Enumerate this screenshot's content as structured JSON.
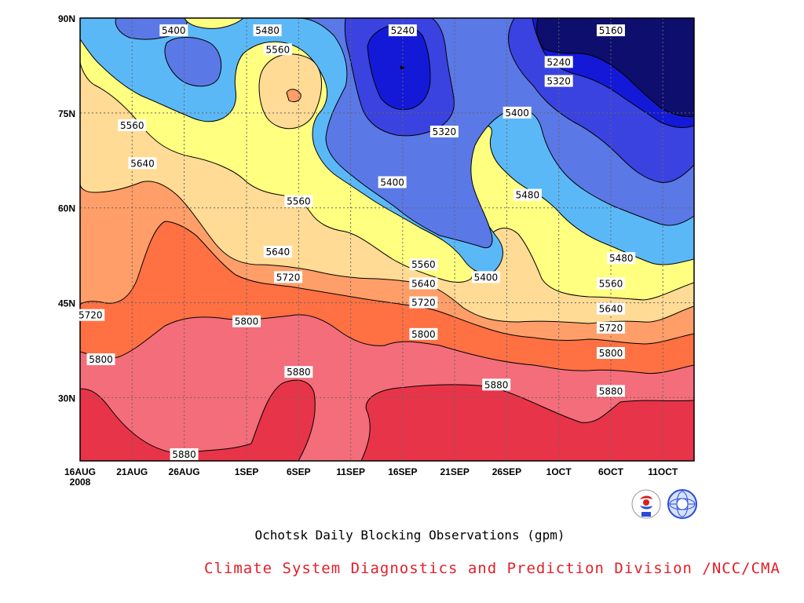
{
  "chart_data": {
    "type": "contour",
    "title": "Ochotsk Daily Blocking Observations (gpm)",
    "credit": "Climate System Diagnostics and Prediction Division /NCC/CMA",
    "x_ticks": [
      "16AUG\n2008",
      "21AUG",
      "26AUG",
      "1SEP",
      "6SEP",
      "11SEP",
      "16SEP",
      "21SEP",
      "26SEP",
      "1OCT",
      "6OCT",
      "11OCT"
    ],
    "y_ticks": [
      "90N",
      "75N",
      "60N",
      "45N",
      "30N"
    ],
    "x_range": [
      "16AUG2008",
      "14OCT2008"
    ],
    "y_range": [
      20,
      90
    ],
    "grid": true,
    "contour_levels": [
      5160,
      5240,
      5320,
      5400,
      5480,
      5560,
      5640,
      5720,
      5800,
      5880
    ],
    "fill_colors": {
      "lt5160": "#0d0e6e",
      "5160": "#1419d8",
      "5240": "#3a42e0",
      "5320": "#5a78e6",
      "5400": "#5bb8f7",
      "5480": "#ffff80",
      "5560": "#ffdb95",
      "5640": "#ff9e68",
      "5720": "#ff7043",
      "5800": "#f46d7a",
      "5880": "#e83448"
    },
    "contour_labels": [
      {
        "text": "5400",
        "lat": 88,
        "date": "25AUG"
      },
      {
        "text": "5480",
        "lat": 88,
        "date": "3SEP"
      },
      {
        "text": "5240",
        "lat": 88,
        "date": "16SEP"
      },
      {
        "text": "5160",
        "lat": 88,
        "date": "6OCT"
      },
      {
        "text": "5560",
        "lat": 85,
        "date": "4SEP"
      },
      {
        "text": "5240",
        "lat": 83,
        "date": "1OCT"
      },
      {
        "text": "5320",
        "lat": 80,
        "date": "1OCT"
      },
      {
        "text": "5400",
        "lat": 75,
        "date": "27SEP"
      },
      {
        "text": "5560",
        "lat": 73,
        "date": "21AUG"
      },
      {
        "text": "5320",
        "lat": 72,
        "date": "20SEP"
      },
      {
        "text": "5640",
        "lat": 67,
        "date": "22AUG"
      },
      {
        "text": "5400",
        "lat": 64,
        "date": "15SEP"
      },
      {
        "text": "5480",
        "lat": 62,
        "date": "28SEP"
      },
      {
        "text": "5560",
        "lat": 61,
        "date": "6SEP"
      },
      {
        "text": "5640",
        "lat": 53,
        "date": "4SEP"
      },
      {
        "text": "5480",
        "lat": 52,
        "date": "7OCT"
      },
      {
        "text": "5560",
        "lat": 51,
        "date": "18SEP"
      },
      {
        "text": "5400",
        "lat": 49,
        "date": "24SEP"
      },
      {
        "text": "5720",
        "lat": 49,
        "date": "5SEP"
      },
      {
        "text": "5640",
        "lat": 48,
        "date": "18SEP"
      },
      {
        "text": "5560",
        "lat": 48,
        "date": "6OCT"
      },
      {
        "text": "5720",
        "lat": 45,
        "date": "18SEP"
      },
      {
        "text": "5640",
        "lat": 44,
        "date": "6OCT"
      },
      {
        "text": "5720",
        "lat": 43,
        "date": "17AUG"
      },
      {
        "text": "5720",
        "lat": 41,
        "date": "6OCT"
      },
      {
        "text": "5800",
        "lat": 42,
        "date": "1SEP"
      },
      {
        "text": "5800",
        "lat": 40,
        "date": "18SEP"
      },
      {
        "text": "5800",
        "lat": 37,
        "date": "6OCT"
      },
      {
        "text": "5800",
        "lat": 36,
        "date": "18AUG"
      },
      {
        "text": "5880",
        "lat": 34,
        "date": "6SEP"
      },
      {
        "text": "5880",
        "lat": 32,
        "date": "25SEP"
      },
      {
        "text": "5880",
        "lat": 31,
        "date": "6OCT"
      },
      {
        "text": "5880",
        "lat": 21,
        "date": "26AUG"
      }
    ]
  }
}
